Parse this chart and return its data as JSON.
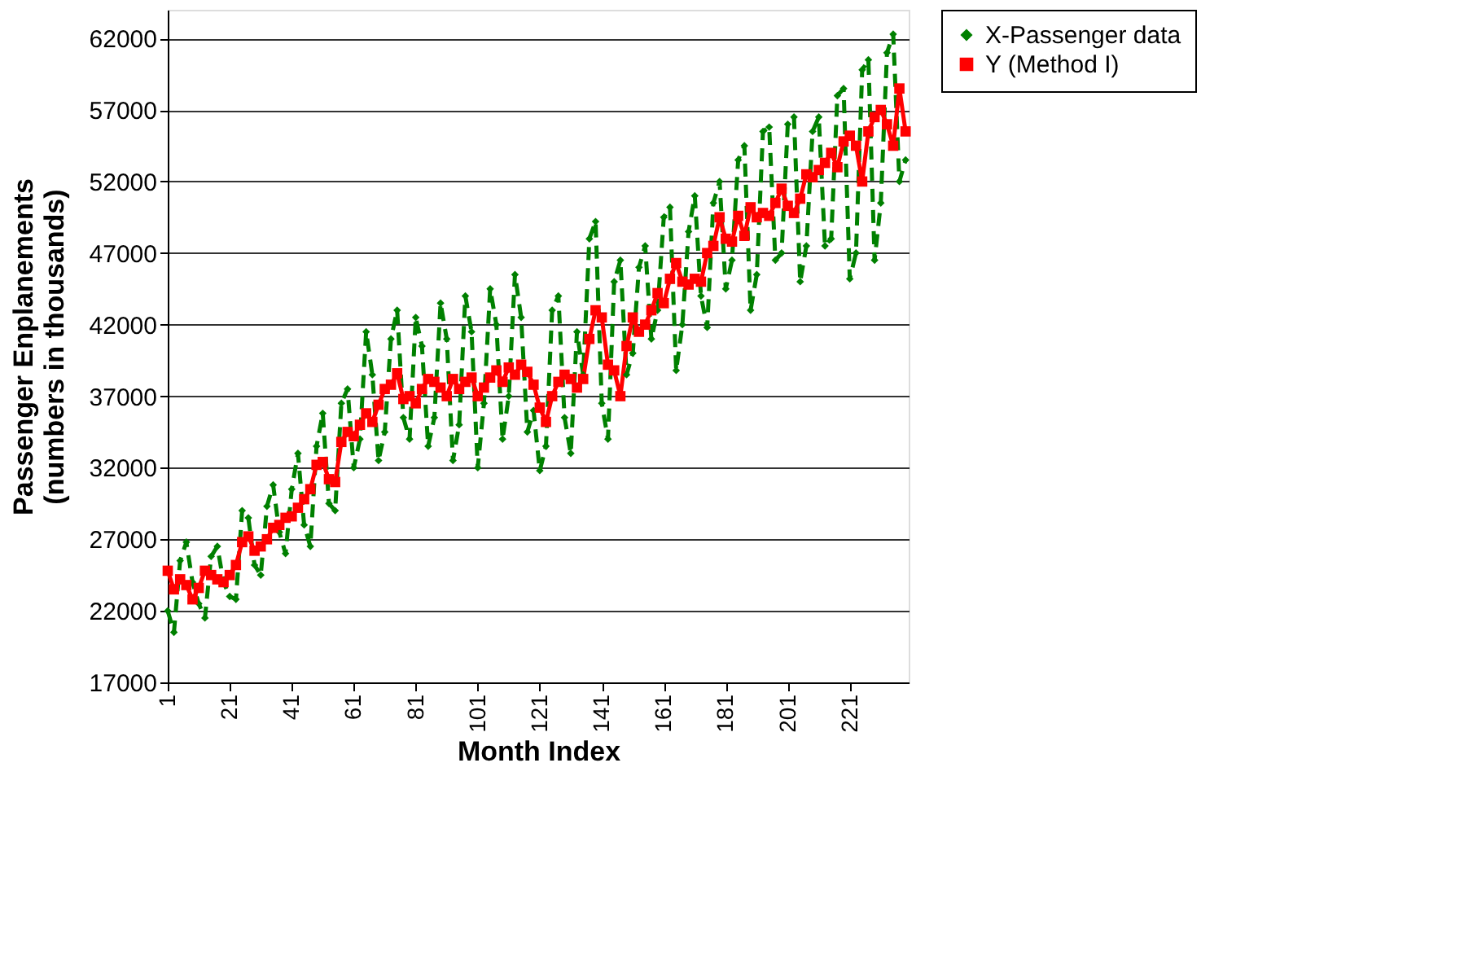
{
  "chart_data": {
    "type": "line",
    "xlabel": "Month Index",
    "ylabel": "Passenger Enplanements (numbers in thousands)",
    "xlim": [
      1,
      240
    ],
    "xticks": [
      1,
      21,
      41,
      61,
      81,
      101,
      121,
      141,
      161,
      181,
      201,
      221
    ],
    "ylim": [
      17000,
      64000
    ],
    "yticks": [
      17000,
      22000,
      27000,
      32000,
      37000,
      42000,
      47000,
      52000,
      57000,
      62000
    ],
    "grid": "y",
    "legend": "right",
    "x": [
      1,
      3,
      5,
      7,
      9,
      11,
      13,
      15,
      17,
      19,
      21,
      23,
      25,
      27,
      29,
      31,
      33,
      35,
      37,
      39,
      41,
      43,
      45,
      47,
      49,
      51,
      53,
      55,
      57,
      59,
      61,
      63,
      65,
      67,
      69,
      71,
      73,
      75,
      77,
      79,
      81,
      83,
      85,
      87,
      89,
      91,
      93,
      95,
      97,
      99,
      101,
      103,
      105,
      107,
      109,
      111,
      113,
      115,
      117,
      119,
      121,
      123,
      125,
      127,
      129,
      131,
      133,
      135,
      137,
      139,
      141,
      143,
      145,
      147,
      149,
      151,
      153,
      155,
      157,
      159,
      161,
      163,
      165,
      167,
      169,
      171,
      173,
      175,
      177,
      179,
      181,
      183,
      185,
      187,
      189,
      191,
      193,
      195,
      197,
      199,
      201,
      203,
      205,
      207,
      209,
      211,
      213,
      215,
      217,
      219,
      221,
      223,
      225,
      227,
      229,
      231,
      233,
      235,
      237,
      239
    ],
    "series": [
      {
        "name": "X-Passenger data",
        "color": "#008000",
        "marker": "diamond",
        "line_style": "dashed",
        "values": [
          22000,
          20500,
          25500,
          26800,
          24000,
          22500,
          21500,
          25800,
          26500,
          24000,
          23000,
          22800,
          29000,
          28500,
          25200,
          24500,
          29300,
          30800,
          27500,
          26000,
          30500,
          33000,
          28000,
          26500,
          33500,
          35800,
          29500,
          29000,
          36500,
          37500,
          32000,
          34000,
          41500,
          38500,
          32500,
          34500,
          41000,
          43000,
          35500,
          34000,
          42500,
          40500,
          33500,
          35500,
          43500,
          41000,
          32500,
          35000,
          44000,
          41500,
          32000,
          36500,
          44500,
          42000,
          34000,
          37000,
          45500,
          42500,
          34500,
          36000,
          31800,
          33500,
          43000,
          44000,
          35500,
          33000,
          41500,
          38500,
          48000,
          49200,
          36500,
          34000,
          45000,
          46500,
          38500,
          40000,
          46000,
          47500,
          41000,
          43000,
          49500,
          50200,
          38800,
          42000,
          48500,
          51000,
          44000,
          41800,
          50500,
          52000,
          44500,
          46500,
          53500,
          54500,
          43000,
          45500,
          55500,
          55800,
          46500,
          47000,
          56000,
          56500,
          45000,
          47500,
          55500,
          56500,
          47500,
          48000,
          58000,
          58500,
          45200,
          47000,
          59800,
          60500,
          46500,
          50500,
          61000,
          62300,
          52000,
          53500
        ]
      },
      {
        "name": "Y (Method I)",
        "color": "#ff0000",
        "marker": "square",
        "line_style": "solid",
        "values": [
          24800,
          23500,
          24200,
          23800,
          22800,
          23600,
          24800,
          24500,
          24200,
          24000,
          24500,
          25200,
          26800,
          27200,
          26200,
          26500,
          27000,
          27800,
          28000,
          28500,
          28600,
          29200,
          29800,
          30500,
          32200,
          32400,
          31200,
          31000,
          33800,
          34500,
          34200,
          35000,
          35800,
          35200,
          36400,
          37500,
          37800,
          38600,
          36800,
          37000,
          36500,
          37500,
          38200,
          38000,
          37600,
          37000,
          38200,
          37500,
          38000,
          38300,
          37000,
          37600,
          38300,
          38800,
          38000,
          39000,
          38500,
          39200,
          38700,
          37800,
          36200,
          35200,
          37000,
          38000,
          38500,
          38200,
          37600,
          38200,
          41000,
          43000,
          42500,
          39200,
          38800,
          37000,
          40500,
          42500,
          41500,
          42000,
          43000,
          44200,
          43500,
          45200,
          46300,
          45000,
          44800,
          45200,
          45000,
          47000,
          47500,
          49500,
          48000,
          47800,
          49600,
          48200,
          50200,
          49500,
          49800,
          49600,
          50500,
          51500,
          50300,
          49800,
          50800,
          52500,
          52300,
          52800,
          53300,
          54000,
          53000,
          54800,
          55200,
          54500,
          52000,
          55500,
          56500,
          57000,
          56000,
          54500,
          58500,
          55500
        ]
      }
    ]
  }
}
